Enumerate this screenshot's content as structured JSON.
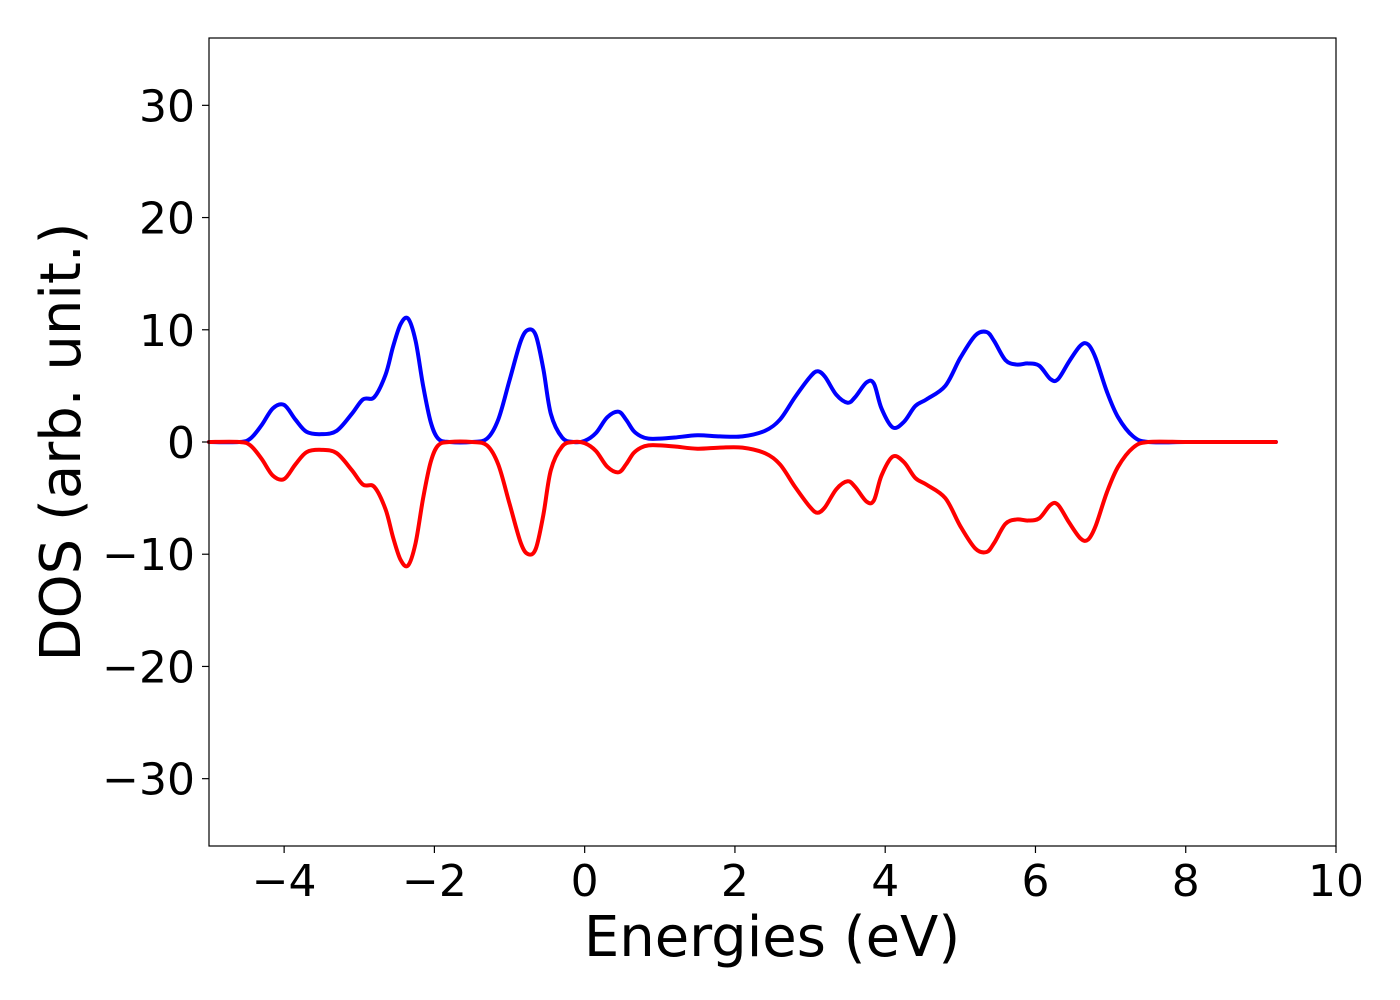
{
  "chart_data": {
    "type": "line",
    "title": "",
    "xlabel": "Energies (eV)",
    "ylabel": "DOS (arb. unit.)",
    "xlim": [
      -5,
      10
    ],
    "ylim": [
      -36,
      36
    ],
    "x_ticks": [
      -4,
      -2,
      0,
      2,
      4,
      6,
      8,
      10
    ],
    "x_tick_labels": [
      "−4",
      "−2",
      "0",
      "2",
      "4",
      "6",
      "8",
      "10"
    ],
    "y_ticks": [
      30,
      20,
      10,
      0,
      -10,
      -20,
      -30
    ],
    "y_tick_labels": [
      "30",
      "20",
      "10",
      "0",
      "−10",
      "−20",
      "−30"
    ],
    "grid": false,
    "legend": "none",
    "colors": {
      "up": "#0000ff",
      "down": "#ff0000"
    },
    "series": [
      {
        "x": [
          -5.0,
          -4.6,
          -4.45,
          -4.3,
          -4.15,
          -4.0,
          -3.85,
          -3.7,
          -3.5,
          -3.3,
          -3.1,
          -2.95,
          -2.8,
          -2.65,
          -2.55,
          -2.45,
          -2.35,
          -2.25,
          -2.15,
          -2.05,
          -1.95,
          -1.8,
          -1.5,
          -1.3,
          -1.15,
          -1.0,
          -0.85,
          -0.75,
          -0.65,
          -0.55,
          -0.45,
          -0.3,
          -0.15,
          0.0,
          0.15,
          0.3,
          0.45,
          0.55,
          0.65,
          0.75,
          0.85,
          1.0,
          1.2,
          1.5,
          1.8,
          2.1,
          2.4,
          2.6,
          2.8,
          3.0,
          3.1,
          3.2,
          3.35,
          3.5,
          3.6,
          3.75,
          3.85,
          3.95,
          4.1,
          4.25,
          4.4,
          4.55,
          4.8,
          5.0,
          5.2,
          5.35,
          5.45,
          5.6,
          5.75,
          5.9,
          6.05,
          6.2,
          6.3,
          6.45,
          6.6,
          6.7,
          6.8,
          6.95,
          7.1,
          7.3,
          7.5,
          8.0,
          8.5,
          9.2
        ],
        "y": [
          0,
          0,
          0.3,
          1.5,
          3.0,
          3.3,
          2.0,
          0.9,
          0.7,
          1.0,
          2.5,
          3.8,
          4.0,
          6.0,
          8.5,
          10.5,
          11.0,
          9.0,
          5.0,
          1.8,
          0.3,
          0.0,
          0.0,
          0.3,
          2.0,
          5.5,
          9.0,
          10.0,
          9.5,
          6.5,
          2.5,
          0.4,
          0.0,
          0.1,
          0.8,
          2.2,
          2.7,
          2.0,
          1.0,
          0.5,
          0.3,
          0.3,
          0.4,
          0.6,
          0.5,
          0.5,
          1.0,
          2.0,
          4.0,
          5.8,
          6.3,
          5.8,
          4.2,
          3.5,
          4.0,
          5.3,
          5.2,
          3.0,
          1.3,
          1.8,
          3.2,
          3.8,
          5.0,
          7.5,
          9.5,
          9.8,
          9.0,
          7.3,
          6.9,
          7.0,
          6.8,
          5.6,
          5.6,
          7.2,
          8.6,
          8.7,
          7.5,
          4.5,
          2.2,
          0.5,
          0.0,
          0.0,
          0.0,
          0.0
        ]
      },
      {
        "x": [
          -5.0,
          -4.6,
          -4.45,
          -4.3,
          -4.15,
          -4.0,
          -3.85,
          -3.7,
          -3.5,
          -3.3,
          -3.1,
          -2.95,
          -2.8,
          -2.65,
          -2.55,
          -2.45,
          -2.35,
          -2.25,
          -2.15,
          -2.05,
          -1.95,
          -1.8,
          -1.5,
          -1.3,
          -1.15,
          -1.0,
          -0.85,
          -0.75,
          -0.65,
          -0.55,
          -0.45,
          -0.3,
          -0.15,
          0.0,
          0.15,
          0.3,
          0.45,
          0.55,
          0.65,
          0.75,
          0.85,
          1.0,
          1.2,
          1.5,
          1.8,
          2.1,
          2.4,
          2.6,
          2.8,
          3.0,
          3.1,
          3.2,
          3.35,
          3.5,
          3.6,
          3.75,
          3.85,
          3.95,
          4.1,
          4.25,
          4.4,
          4.55,
          4.8,
          5.0,
          5.2,
          5.35,
          5.45,
          5.6,
          5.75,
          5.9,
          6.05,
          6.2,
          6.3,
          6.45,
          6.6,
          6.7,
          6.8,
          6.95,
          7.1,
          7.3,
          7.5,
          8.0,
          8.5,
          9.2
        ],
        "y": [
          0,
          0,
          -0.3,
          -1.5,
          -3.0,
          -3.3,
          -2.0,
          -0.9,
          -0.7,
          -1.0,
          -2.5,
          -3.8,
          -4.0,
          -6.0,
          -8.5,
          -10.5,
          -11.0,
          -9.0,
          -5.0,
          -1.8,
          -0.3,
          0.0,
          0.0,
          -0.3,
          -2.0,
          -5.5,
          -9.0,
          -10.0,
          -9.5,
          -6.5,
          -2.5,
          -0.4,
          0.0,
          -0.1,
          -0.8,
          -2.2,
          -2.7,
          -2.0,
          -1.0,
          -0.5,
          -0.3,
          -0.3,
          -0.4,
          -0.6,
          -0.5,
          -0.5,
          -1.0,
          -2.0,
          -4.0,
          -5.8,
          -6.3,
          -5.8,
          -4.2,
          -3.5,
          -4.0,
          -5.3,
          -5.2,
          -3.0,
          -1.3,
          -1.8,
          -3.2,
          -3.8,
          -5.0,
          -7.5,
          -9.5,
          -9.8,
          -9.0,
          -7.3,
          -6.9,
          -7.0,
          -6.8,
          -5.6,
          -5.6,
          -7.2,
          -8.6,
          -8.7,
          -7.5,
          -4.5,
          -2.2,
          -0.5,
          0.0,
          0.0,
          0.0,
          0.0
        ]
      }
    ]
  }
}
